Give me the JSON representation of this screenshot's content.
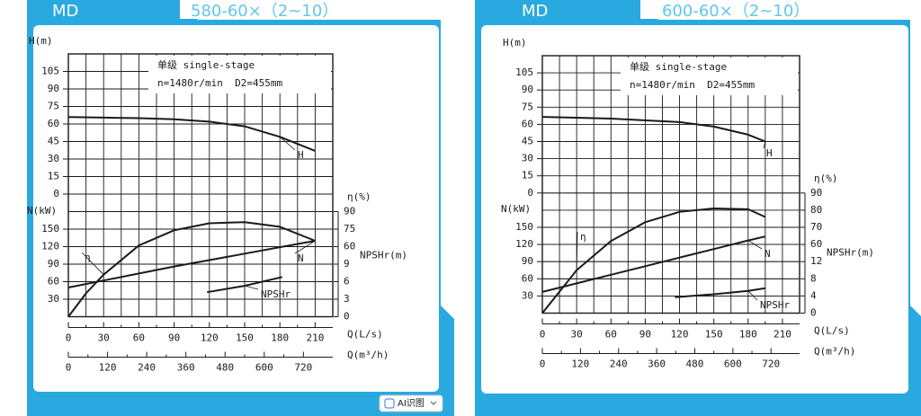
{
  "chart_data": [
    {
      "type": "line",
      "title": "MD",
      "subtitle": "580-60×（2~10）",
      "annotations": [
        "单级 single-stage",
        "n=1480r/min  D2=455mm"
      ],
      "xlabel": "Q(L/s)",
      "x2label": "Q(m³/h)",
      "ylabel": "H(m)",
      "y2label": "N(kW)",
      "y3label": "η(%)",
      "y4label": "NPSHr(m)",
      "xlim": [
        0,
        225
      ],
      "xticks": [
        0,
        30,
        60,
        90,
        120,
        150,
        180,
        210
      ],
      "x2lim": [
        0,
        810
      ],
      "x2ticks": [
        0,
        120,
        240,
        360,
        480,
        600,
        720
      ],
      "ylim": [
        0,
        120
      ],
      "yticks": [
        0,
        15,
        30,
        45,
        60,
        75,
        90,
        105
      ],
      "y2lim": [
        0,
        150
      ],
      "y2ticks": [
        30,
        60,
        90,
        120,
        150
      ],
      "y3lim": [
        0,
        90
      ],
      "y3ticks": [
        60,
        75,
        90
      ],
      "y4lim": [
        0,
        9
      ],
      "y4ticks": [
        0,
        3,
        6,
        9
      ],
      "grid": true,
      "color": "#1a1a1a",
      "series": [
        {
          "name": "H",
          "axis": "y",
          "x": [
            0,
            30,
            60,
            90,
            120,
            150,
            180,
            210
          ],
          "values": [
            66,
            65.5,
            65,
            64,
            62,
            58,
            49,
            37
          ]
        },
        {
          "name": "N",
          "axis": "y2",
          "x": [
            0,
            30,
            60,
            90,
            120,
            150,
            180,
            210
          ],
          "values": [
            50,
            62,
            74,
            86,
            97,
            108,
            119,
            130
          ]
        },
        {
          "name": "η",
          "axis": "y3",
          "x": [
            0,
            15,
            30,
            60,
            90,
            120,
            150,
            180,
            210
          ],
          "values": [
            0,
            20,
            36,
            61,
            74,
            80,
            81,
            77,
            65
          ]
        },
        {
          "name": "NPSHr",
          "axis": "y4",
          "x": [
            118,
            150,
            182
          ],
          "values": [
            4.2,
            5.3,
            6.8
          ]
        }
      ]
    },
    {
      "type": "line",
      "title": "MD",
      "subtitle": "600-60×（2~10）",
      "annotations": [
        "单级 single-stage",
        "n=1480r/min  D2=455mm"
      ],
      "xlabel": "Q(L/s)",
      "x2label": "Q(m³/h)",
      "ylabel": "H(m)",
      "y2label": "N(kW)",
      "y3label": "η(%)",
      "y4label": "NPSHr(m)",
      "xlim": [
        0,
        225
      ],
      "xticks": [
        0,
        30,
        60,
        90,
        120,
        150,
        180,
        210
      ],
      "x2lim": [
        0,
        810
      ],
      "x2ticks": [
        0,
        120,
        240,
        360,
        480,
        600,
        720
      ],
      "ylim": [
        0,
        120
      ],
      "yticks": [
        0,
        15,
        30,
        45,
        60,
        75,
        90,
        105
      ],
      "y2lim": [
        0,
        150
      ],
      "y2ticks": [
        30,
        60,
        90,
        120,
        150
      ],
      "y3lim": [
        60,
        90
      ],
      "y3ticks": [
        60,
        70,
        80,
        90
      ],
      "y4lim": [
        0,
        12
      ],
      "y4ticks": [
        0,
        4,
        8,
        12
      ],
      "grid": true,
      "color": "#1a1a1a",
      "series": [
        {
          "name": "H",
          "axis": "y",
          "x": [
            0,
            60,
            120,
            150,
            180,
            195
          ],
          "values": [
            66.5,
            65,
            62,
            58,
            51,
            45
          ]
        },
        {
          "name": "N",
          "axis": "y2",
          "x": [
            0,
            30,
            60,
            90,
            120,
            150,
            180,
            195
          ],
          "values": [
            37,
            52,
            67,
            82,
            97,
            112,
            127,
            134
          ]
        },
        {
          "name": "η",
          "axis": "y3",
          "x": [
            0,
            30,
            60,
            90,
            120,
            150,
            180,
            195
          ],
          "values": [
            20,
            45,
            62,
            73,
            79,
            81,
            80.5,
            76
          ]
        },
        {
          "name": "NPSHr",
          "axis": "y4",
          "x": [
            116,
            150,
            180,
            195
          ],
          "values": [
            3.7,
            4.4,
            5.2,
            5.8
          ]
        }
      ]
    }
  ],
  "ui": {
    "button": "AI识图"
  }
}
